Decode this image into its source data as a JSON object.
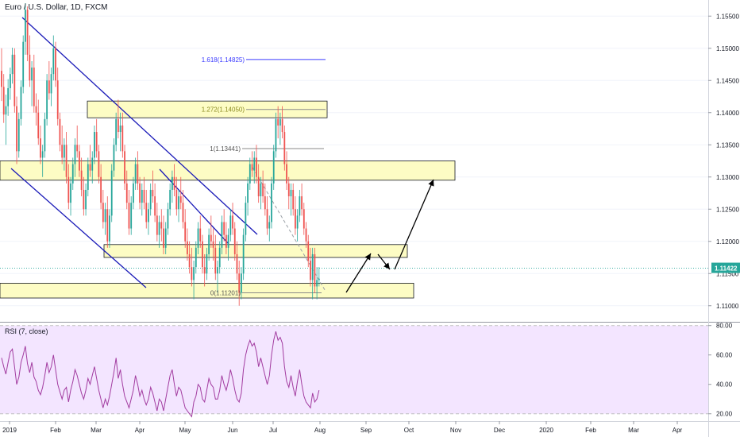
{
  "header": {
    "title": "Euro / U.S. Dollar, 1D, FXCM"
  },
  "rsi": {
    "title": "RSI (7, close)"
  },
  "colors": {
    "up": "#26a69a",
    "down": "#ef5350",
    "zone_fill": "#fdfcc4",
    "zone_border": "#131722",
    "channel": "#1a1ab8",
    "fib": "#3a3aff",
    "rsi_line": "#a23ca0",
    "rsi_band": "#f3e5ff",
    "price_badge": "#26a69a",
    "grid": "#f0f3fa"
  },
  "chart_data": [
    {
      "type": "candlestick",
      "price_axis": {
        "min": 1.1075,
        "max": 1.1575,
        "ticks": [
          "1.11000",
          "1.11500",
          "1.12000",
          "1.12500",
          "1.13000",
          "1.13500",
          "1.14000",
          "1.14500",
          "1.15000",
          "1.15500"
        ]
      },
      "time_axis": {
        "labels": [
          "2019",
          "Feb",
          "Mar",
          "Apr",
          "May",
          "Jun",
          "Jul",
          "Aug",
          "Sep",
          "Oct",
          "Nov",
          "Dec",
          "2020",
          "Feb",
          "Mar",
          "Apr"
        ]
      },
      "last_price": "1.11422",
      "fib_levels": [
        {
          "label": "1.618(1.14825)",
          "value": 1.14825
        },
        {
          "label": "1.272(1.14050)",
          "value": 1.1405
        },
        {
          "label": "1(1.13441)",
          "value": 1.13441
        },
        {
          "label": "0(1.11201)",
          "value": 1.11201
        }
      ],
      "zones": [
        {
          "from": 1.1392,
          "to": 1.1418
        },
        {
          "from": 1.1295,
          "to": 1.1325
        },
        {
          "from": 1.1175,
          "to": 1.1195
        },
        {
          "from": 1.1112,
          "to": 1.1135
        }
      ],
      "ohlc": [
        [
          1.1465,
          1.15,
          1.1418,
          1.144
        ],
        [
          1.144,
          1.146,
          1.1384,
          1.1397
        ],
        [
          1.1397,
          1.1428,
          1.135,
          1.141
        ],
        [
          1.141,
          1.1452,
          1.1395,
          1.1438
        ],
        [
          1.1438,
          1.147,
          1.142,
          1.146
        ],
        [
          1.146,
          1.1501,
          1.1445,
          1.149
        ],
        [
          1.149,
          1.15,
          1.14,
          1.141
        ],
        [
          1.141,
          1.1425,
          1.132,
          1.134
        ],
        [
          1.134,
          1.14,
          1.133,
          1.139
        ],
        [
          1.139,
          1.145,
          1.138,
          1.144
        ],
        [
          1.144,
          1.152,
          1.143,
          1.151
        ],
        [
          1.151,
          1.157,
          1.149,
          1.156
        ],
        [
          1.156,
          1.1565,
          1.148,
          1.149
        ],
        [
          1.149,
          1.152,
          1.144,
          1.145
        ],
        [
          1.145,
          1.148,
          1.141,
          1.147
        ],
        [
          1.147,
          1.149,
          1.14,
          1.141
        ],
        [
          1.141,
          1.143,
          1.138,
          1.14
        ],
        [
          1.14,
          1.142,
          1.135,
          1.136
        ],
        [
          1.136,
          1.138,
          1.132,
          1.133
        ],
        [
          1.133,
          1.135,
          1.13,
          1.134
        ],
        [
          1.134,
          1.14,
          1.133,
          1.139
        ],
        [
          1.139,
          1.146,
          1.138,
          1.145
        ],
        [
          1.145,
          1.148,
          1.142,
          1.143
        ],
        [
          1.143,
          1.147,
          1.141,
          1.146
        ],
        [
          1.146,
          1.152,
          1.145,
          1.15
        ],
        [
          1.15,
          1.151,
          1.144,
          1.145
        ],
        [
          1.145,
          1.147,
          1.138,
          1.139
        ],
        [
          1.139,
          1.14,
          1.134,
          1.135
        ],
        [
          1.135,
          1.138,
          1.132,
          1.133
        ],
        [
          1.133,
          1.136,
          1.131,
          1.135
        ],
        [
          1.135,
          1.137,
          1.129,
          1.13
        ],
        [
          1.13,
          1.132,
          1.125,
          1.126
        ],
        [
          1.126,
          1.13,
          1.124,
          1.129
        ],
        [
          1.129,
          1.133,
          1.128,
          1.132
        ],
        [
          1.132,
          1.136,
          1.13,
          1.135
        ],
        [
          1.135,
          1.138,
          1.133,
          1.134
        ],
        [
          1.134,
          1.135,
          1.13,
          1.131
        ],
        [
          1.131,
          1.133,
          1.127,
          1.128
        ],
        [
          1.128,
          1.13,
          1.124,
          1.125
        ],
        [
          1.125,
          1.129,
          1.124,
          1.128
        ],
        [
          1.128,
          1.133,
          1.127,
          1.132
        ],
        [
          1.132,
          1.135,
          1.13,
          1.131
        ],
        [
          1.131,
          1.134,
          1.129,
          1.133
        ],
        [
          1.133,
          1.138,
          1.132,
          1.137
        ],
        [
          1.137,
          1.139,
          1.133,
          1.134
        ],
        [
          1.134,
          1.135,
          1.129,
          1.13
        ],
        [
          1.13,
          1.132,
          1.125,
          1.126
        ],
        [
          1.126,
          1.128,
          1.122,
          1.123
        ],
        [
          1.123,
          1.126,
          1.121,
          1.125
        ],
        [
          1.125,
          1.127,
          1.119,
          1.12
        ],
        [
          1.12,
          1.125,
          1.119,
          1.124
        ],
        [
          1.124,
          1.132,
          1.123,
          1.131
        ],
        [
          1.131,
          1.136,
          1.13,
          1.135
        ],
        [
          1.135,
          1.14,
          1.134,
          1.139
        ],
        [
          1.139,
          1.142,
          1.136,
          1.137
        ],
        [
          1.137,
          1.14,
          1.134,
          1.138
        ],
        [
          1.138,
          1.14,
          1.133,
          1.134
        ],
        [
          1.134,
          1.135,
          1.128,
          1.129
        ],
        [
          1.129,
          1.131,
          1.125,
          1.126
        ],
        [
          1.126,
          1.128,
          1.121,
          1.122
        ],
        [
          1.122,
          1.127,
          1.121,
          1.126
        ],
        [
          1.126,
          1.13,
          1.125,
          1.129
        ],
        [
          1.129,
          1.133,
          1.128,
          1.132
        ],
        [
          1.132,
          1.134,
          1.128,
          1.129
        ],
        [
          1.129,
          1.13,
          1.125,
          1.126
        ],
        [
          1.126,
          1.129,
          1.124,
          1.128
        ],
        [
          1.128,
          1.13,
          1.125,
          1.126
        ],
        [
          1.126,
          1.128,
          1.122,
          1.123
        ],
        [
          1.123,
          1.126,
          1.121,
          1.125
        ],
        [
          1.125,
          1.129,
          1.124,
          1.128
        ],
        [
          1.128,
          1.131,
          1.126,
          1.127
        ],
        [
          1.127,
          1.129,
          1.123,
          1.124
        ],
        [
          1.124,
          1.126,
          1.12,
          1.121
        ],
        [
          1.121,
          1.124,
          1.119,
          1.123
        ],
        [
          1.123,
          1.125,
          1.12,
          1.122
        ],
        [
          1.122,
          1.124,
          1.118,
          1.119
        ],
        [
          1.119,
          1.123,
          1.118,
          1.122
        ],
        [
          1.122,
          1.126,
          1.121,
          1.125
        ],
        [
          1.125,
          1.129,
          1.124,
          1.128
        ],
        [
          1.128,
          1.131,
          1.126,
          1.13
        ],
        [
          1.13,
          1.132,
          1.127,
          1.128
        ],
        [
          1.128,
          1.13,
          1.124,
          1.125
        ],
        [
          1.125,
          1.128,
          1.123,
          1.127
        ],
        [
          1.127,
          1.13,
          1.125,
          1.126
        ],
        [
          1.126,
          1.128,
          1.122,
          1.123
        ],
        [
          1.123,
          1.125,
          1.119,
          1.12
        ],
        [
          1.12,
          1.122,
          1.117,
          1.118
        ],
        [
          1.118,
          1.12,
          1.115,
          1.116
        ],
        [
          1.116,
          1.119,
          1.113,
          1.114
        ],
        [
          1.114,
          1.117,
          1.111,
          1.116
        ],
        [
          1.116,
          1.12,
          1.115,
          1.119
        ],
        [
          1.119,
          1.123,
          1.118,
          1.122
        ],
        [
          1.122,
          1.124,
          1.119,
          1.12
        ],
        [
          1.12,
          1.121,
          1.115,
          1.116
        ],
        [
          1.116,
          1.118,
          1.113,
          1.115
        ],
        [
          1.115,
          1.119,
          1.114,
          1.118
        ],
        [
          1.118,
          1.122,
          1.117,
          1.121
        ],
        [
          1.121,
          1.124,
          1.119,
          1.12
        ],
        [
          1.12,
          1.122,
          1.117,
          1.119
        ],
        [
          1.119,
          1.121,
          1.114,
          1.115
        ],
        [
          1.115,
          1.117,
          1.112,
          1.116
        ],
        [
          1.116,
          1.12,
          1.115,
          1.119
        ],
        [
          1.119,
          1.124,
          1.118,
          1.123
        ],
        [
          1.123,
          1.125,
          1.12,
          1.121
        ],
        [
          1.121,
          1.123,
          1.118,
          1.119
        ],
        [
          1.119,
          1.122,
          1.117,
          1.121
        ],
        [
          1.121,
          1.125,
          1.12,
          1.124
        ],
        [
          1.124,
          1.126,
          1.121,
          1.122
        ],
        [
          1.122,
          1.123,
          1.117,
          1.118
        ],
        [
          1.118,
          1.12,
          1.114,
          1.115
        ],
        [
          1.115,
          1.117,
          1.11,
          1.112
        ],
        [
          1.112,
          1.116,
          1.111,
          1.115
        ],
        [
          1.115,
          1.122,
          1.114,
          1.121
        ],
        [
          1.121,
          1.127,
          1.12,
          1.126
        ],
        [
          1.126,
          1.13,
          1.124,
          1.129
        ],
        [
          1.129,
          1.133,
          1.128,
          1.132
        ],
        [
          1.132,
          1.134,
          1.13,
          1.131
        ],
        [
          1.131,
          1.134,
          1.129,
          1.133
        ],
        [
          1.133,
          1.135,
          1.129,
          1.13
        ],
        [
          1.13,
          1.132,
          1.126,
          1.127
        ],
        [
          1.127,
          1.13,
          1.125,
          1.129
        ],
        [
          1.129,
          1.131,
          1.126,
          1.127
        ],
        [
          1.127,
          1.129,
          1.124,
          1.125
        ],
        [
          1.125,
          1.127,
          1.121,
          1.122
        ],
        [
          1.122,
          1.124,
          1.12,
          1.123
        ],
        [
          1.123,
          1.13,
          1.122,
          1.129
        ],
        [
          1.129,
          1.135,
          1.128,
          1.134
        ],
        [
          1.134,
          1.14,
          1.133,
          1.139
        ],
        [
          1.139,
          1.141,
          1.136,
          1.138
        ],
        [
          1.138,
          1.14,
          1.135,
          1.139
        ],
        [
          1.139,
          1.141,
          1.136,
          1.137
        ],
        [
          1.137,
          1.138,
          1.131,
          1.132
        ],
        [
          1.132,
          1.134,
          1.128,
          1.129
        ],
        [
          1.129,
          1.13,
          1.125,
          1.127
        ],
        [
          1.127,
          1.129,
          1.124,
          1.128
        ],
        [
          1.128,
          1.129,
          1.124,
          1.125
        ],
        [
          1.125,
          1.127,
          1.121,
          1.122
        ],
        [
          1.122,
          1.125,
          1.12,
          1.124
        ],
        [
          1.124,
          1.128,
          1.123,
          1.127
        ],
        [
          1.127,
          1.129,
          1.124,
          1.125
        ],
        [
          1.125,
          1.126,
          1.121,
          1.122
        ],
        [
          1.122,
          1.123,
          1.119,
          1.12
        ],
        [
          1.12,
          1.121,
          1.116,
          1.117
        ],
        [
          1.117,
          1.119,
          1.113,
          1.114
        ],
        [
          1.114,
          1.119,
          1.111,
          1.118
        ],
        [
          1.118,
          1.119,
          1.112,
          1.113
        ],
        [
          1.113,
          1.116,
          1.111,
          1.114
        ],
        [
          1.114,
          1.116,
          1.113,
          1.1142
        ]
      ],
      "arrows": [
        {
          "from": [
            146,
            1.1135
          ],
          "to": [
            160,
            1.1195
          ]
        },
        {
          "from": [
            162,
            1.1192
          ],
          "to": [
            169,
            1.1175
          ]
        },
        {
          "from": [
            171,
            1.118
          ],
          "to": [
            190,
            1.1308
          ]
        }
      ],
      "channels": [
        {
          "from": [
            0,
            1.156
          ],
          "to": [
            55,
            1.133
          ]
        },
        {
          "from": [
            0,
            1.135
          ],
          "to": [
            58,
            1.1145
          ]
        },
        {
          "from": [
            66,
            1.1325
          ],
          "to": [
            95,
            1.121
          ]
        },
        {
          "from": [
            30,
            1.144
          ],
          "to": [
            107,
            1.12
          ]
        }
      ],
      "dashed_target": {
        "from": [
          105,
          1.1315
        ],
        "to": [
          140,
          1.113
        ]
      }
    },
    {
      "type": "line",
      "title": "RSI (7, close)",
      "y_axis": {
        "min": 15,
        "max": 82,
        "ticks": [
          "80.00",
          "60.00",
          "40.00",
          "20.00"
        ],
        "band": [
          20,
          80
        ]
      },
      "values": [
        58,
        52,
        47,
        55,
        62,
        64,
        52,
        40,
        45,
        55,
        60,
        66,
        54,
        48,
        55,
        45,
        42,
        36,
        33,
        38,
        46,
        55,
        48,
        52,
        60,
        50,
        40,
        35,
        30,
        36,
        38,
        28,
        36,
        42,
        50,
        46,
        40,
        34,
        30,
        36,
        44,
        40,
        46,
        52,
        44,
        36,
        30,
        24,
        30,
        26,
        32,
        40,
        48,
        58,
        44,
        50,
        40,
        32,
        28,
        24,
        30,
        36,
        46,
        40,
        32,
        36,
        30,
        26,
        30,
        38,
        34,
        28,
        22,
        30,
        28,
        22,
        30,
        38,
        46,
        50,
        40,
        32,
        38,
        36,
        30,
        24,
        22,
        20,
        18,
        28,
        32,
        40,
        38,
        30,
        28,
        36,
        44,
        40,
        38,
        30,
        30,
        36,
        46,
        40,
        36,
        42,
        50,
        44,
        36,
        30,
        28,
        34,
        50,
        60,
        66,
        70,
        66,
        68,
        62,
        52,
        58,
        52,
        46,
        40,
        46,
        60,
        70,
        76,
        70,
        72,
        68,
        52,
        42,
        38,
        46,
        38,
        32,
        42,
        50,
        40,
        32,
        28,
        26,
        24,
        34,
        28,
        30,
        36
      ]
    }
  ]
}
